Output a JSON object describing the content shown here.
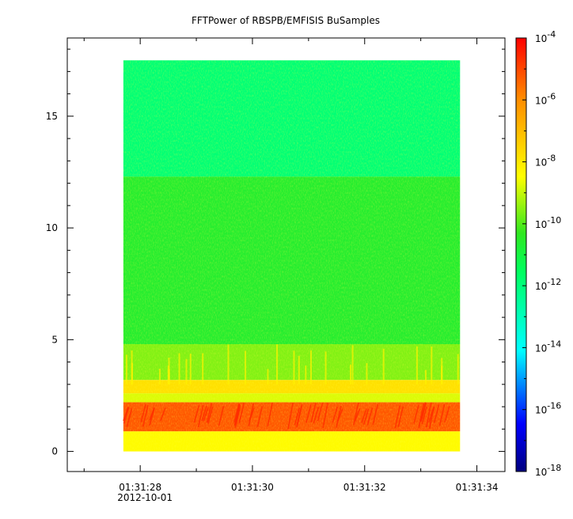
{
  "chart_data": {
    "type": "heatmap",
    "title": "FFTPower of RBSPB/EMFISIS  BuSamples",
    "xlabel": "",
    "ylabel": "",
    "x_time_start": "01:31:26.7",
    "x_time_end": "01:31:34.5",
    "data_time_start": "01:31:27.7",
    "data_time_end": "01:31:33.7",
    "x_ticks": [
      {
        "time": "01:31:28",
        "label": "01:31:28",
        "sublabel": "2012-10-01"
      },
      {
        "time": "01:31:30",
        "label": "01:31:30",
        "sublabel": ""
      },
      {
        "time": "01:31:32",
        "label": "01:31:32",
        "sublabel": ""
      },
      {
        "time": "01:31:34",
        "label": "01:31:34",
        "sublabel": ""
      }
    ],
    "y_range": [
      -0.9,
      18.5
    ],
    "y_data_range": [
      0,
      17.5
    ],
    "y_ticks": [
      0,
      5,
      10,
      15
    ],
    "colorbar": {
      "scale": "log",
      "range_exponent": [
        -18,
        -4
      ],
      "tick_exponents": [
        -4,
        -6,
        -8,
        -10,
        -12,
        -14,
        -16,
        -18
      ],
      "tick_labels": [
        "10-4",
        "10-6",
        "10-8",
        "10-10",
        "10-12",
        "10-14",
        "10-16",
        "10-18"
      ]
    },
    "bands_log10_power": [
      {
        "y_from": 0,
        "y_to": 0.9,
        "value": -8.4
      },
      {
        "y_from": 0.9,
        "y_to": 2.2,
        "value": -5.2
      },
      {
        "y_from": 2.2,
        "y_to": 2.6,
        "value": -8.8
      },
      {
        "y_from": 2.6,
        "y_to": 3.2,
        "value": -7.8
      },
      {
        "y_from": 3.2,
        "y_to": 4.8,
        "value": -9.6
      },
      {
        "y_from": 4.8,
        "y_to": 12.3,
        "value": -10.6
      },
      {
        "y_from": 12.3,
        "y_to": 17.5,
        "value": -11.9
      }
    ],
    "grid": false,
    "legend": "colorbar-right"
  }
}
